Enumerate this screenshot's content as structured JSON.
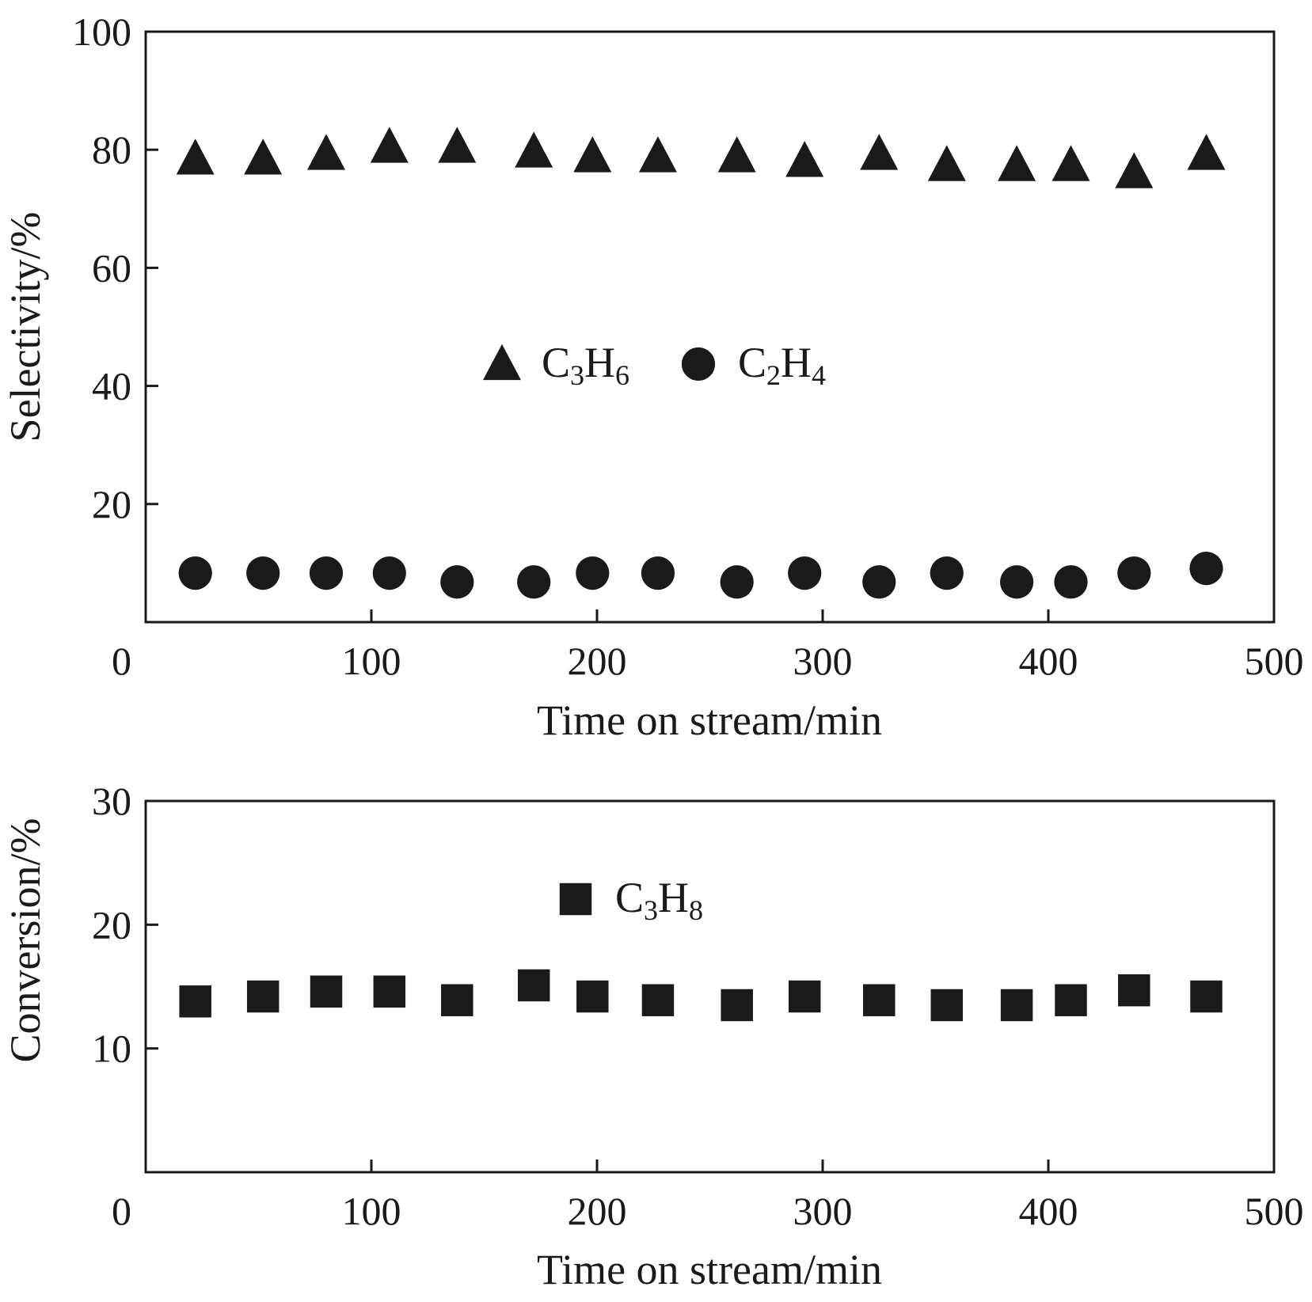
{
  "chart_data": [
    {
      "type": "scatter",
      "xlabel": "Time on stream/min",
      "ylabel": "Selectivity/%",
      "xlim": [
        0,
        500
      ],
      "ylim": [
        0,
        100
      ],
      "xticks": [
        "0",
        "100",
        "200",
        "300",
        "400",
        "500"
      ],
      "yticks": [
        "20",
        "40",
        "60",
        "80",
        "100"
      ],
      "grid": false,
      "legend_placement": "center",
      "legend": [
        {
          "marker": "triangle",
          "base": "C",
          "sub1": "3",
          "mid": "H",
          "sub2": "6"
        },
        {
          "marker": "circle",
          "base": "C",
          "sub1": "2",
          "mid": "H",
          "sub2": "4"
        }
      ],
      "series": [
        {
          "name": "C3H6",
          "marker": "triangle",
          "x": [
            22,
            52,
            80,
            108,
            138,
            172,
            198,
            227,
            262,
            292,
            325,
            355,
            386,
            410,
            438,
            470
          ],
          "y": [
            78.5,
            78.5,
            79.3,
            80.5,
            80.5,
            79.7,
            78.9,
            78.9,
            78.9,
            78.1,
            79.3,
            77.4,
            77.4,
            77.4,
            76.2,
            79.3
          ]
        },
        {
          "name": "C2H4",
          "marker": "circle",
          "x": [
            22,
            52,
            80,
            108,
            138,
            172,
            198,
            227,
            262,
            292,
            325,
            355,
            386,
            410,
            438,
            470
          ],
          "y": [
            8.3,
            8.3,
            8.3,
            8.3,
            6.8,
            6.8,
            8.3,
            8.3,
            6.8,
            8.3,
            6.8,
            8.3,
            6.8,
            6.8,
            8.3,
            9.1
          ]
        }
      ]
    },
    {
      "type": "scatter",
      "xlabel": "Time on stream/min",
      "ylabel": "Conversion/%",
      "xlim": [
        0,
        500
      ],
      "ylim": [
        0,
        30
      ],
      "xticks": [
        "0",
        "100",
        "200",
        "300",
        "400",
        "500"
      ],
      "yticks": [
        "10",
        "20",
        "30"
      ],
      "grid": false,
      "legend_placement": "top-center",
      "legend": [
        {
          "marker": "square",
          "base": "C",
          "sub1": "3",
          "mid": "H",
          "sub2": "8"
        }
      ],
      "series": [
        {
          "name": "C3H8",
          "marker": "square",
          "x": [
            22,
            52,
            80,
            108,
            138,
            172,
            198,
            227,
            262,
            292,
            325,
            355,
            386,
            410,
            438,
            470
          ],
          "y": [
            13.8,
            14.2,
            14.6,
            14.6,
            13.9,
            15.1,
            14.2,
            13.9,
            13.5,
            14.2,
            13.9,
            13.5,
            13.5,
            13.9,
            14.7,
            14.2
          ]
        }
      ]
    }
  ]
}
